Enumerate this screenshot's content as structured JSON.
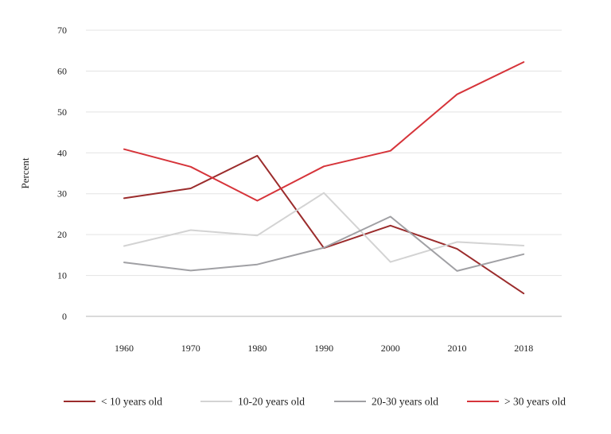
{
  "chart_data": {
    "type": "line",
    "title": "",
    "xlabel": "",
    "ylabel": "Percent",
    "ylim": [
      0,
      70
    ],
    "yticks": [
      0,
      10,
      20,
      30,
      40,
      50,
      60,
      70
    ],
    "categories": [
      "1960",
      "1970",
      "1980",
      "1990",
      "2000",
      "2010",
      "2018"
    ],
    "grid": "horizontal",
    "legend_position": "bottom",
    "series": [
      {
        "name": "< 10 years old",
        "color": "#9b2c2c",
        "values": [
          28.9,
          31.3,
          39.3,
          16.7,
          22.2,
          16.5,
          5.6
        ]
      },
      {
        "name": "10-20 years old",
        "color": "#d3d3d3",
        "values": [
          17.2,
          21.1,
          19.8,
          30.2,
          13.3,
          18.2,
          17.3
        ]
      },
      {
        "name": "20-30 years old",
        "color": "#a0a0a4",
        "values": [
          13.2,
          11.2,
          12.7,
          16.8,
          24.4,
          11.1,
          15.2
        ]
      },
      {
        "name": "> 30 years old",
        "color": "#d6343a",
        "values": [
          40.9,
          36.6,
          28.3,
          36.7,
          40.5,
          54.3,
          62.2
        ]
      }
    ]
  }
}
